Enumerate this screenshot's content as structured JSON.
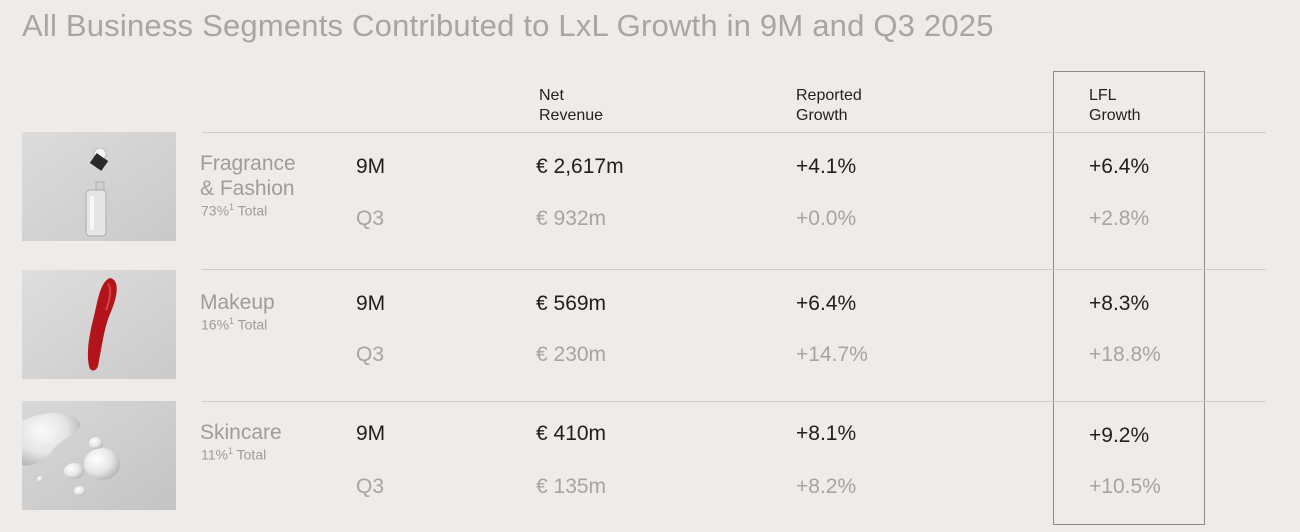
{
  "title": "All Business Segments Contributed to LxL Growth in 9M and Q3 2025",
  "headers": {
    "net_revenue": [
      "Net",
      "Revenue"
    ],
    "reported_growth": [
      "Reported",
      "Growth"
    ],
    "lfl_growth": [
      "LFL",
      "Growth"
    ]
  },
  "segments": [
    {
      "name_lines": [
        "Fragrance",
        "& Fashion"
      ],
      "share": "73%",
      "share_note": "1",
      "share_suffix": " Total",
      "image": "perfume-bottle",
      "rows": [
        {
          "period": "9M",
          "net_revenue": "€ 2,617m",
          "reported_growth": "+4.1%",
          "lfl_growth": "+6.4%"
        },
        {
          "period": "Q3",
          "net_revenue": "€ 932m",
          "reported_growth": "+0.0%",
          "lfl_growth": "+2.8%"
        }
      ]
    },
    {
      "name_lines": [
        "Makeup"
      ],
      "share": "16%",
      "share_note": "1",
      "share_suffix": " Total",
      "image": "lipstick-swatch",
      "rows": [
        {
          "period": "9M",
          "net_revenue": "€ 569m",
          "reported_growth": "+6.4%",
          "lfl_growth": "+8.3%"
        },
        {
          "period": "Q3",
          "net_revenue": "€ 230m",
          "reported_growth": "+14.7%",
          "lfl_growth": "+18.8%"
        }
      ]
    },
    {
      "name_lines": [
        "Skincare"
      ],
      "share": "11%",
      "share_note": "1",
      "share_suffix": " Total",
      "image": "serum-droplets",
      "rows": [
        {
          "period": "9M",
          "net_revenue": "€ 410m",
          "reported_growth": "+8.1%",
          "lfl_growth": "+9.2%"
        },
        {
          "period": "Q3",
          "net_revenue": "€ 135m",
          "reported_growth": "+8.2%",
          "lfl_growth": "+10.5%"
        }
      ]
    }
  ],
  "colors": {
    "background": "#eeebe8",
    "title": "#a9a59f",
    "primary_text": "#1f1f1f",
    "secondary_text": "#a8a49e",
    "lipstick": "#b3141b"
  }
}
